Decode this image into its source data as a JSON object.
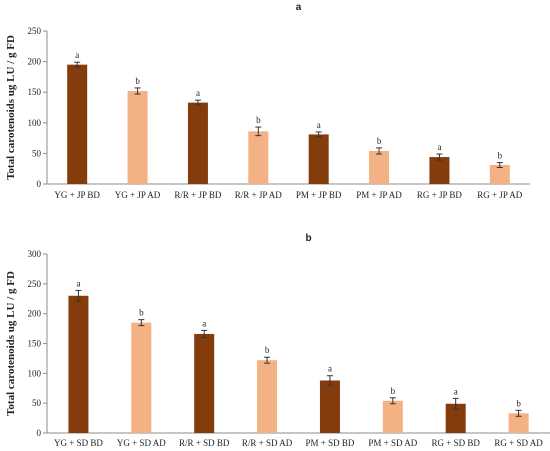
{
  "chart_data": [
    {
      "type": "bar",
      "title": "a",
      "ylabel": "Total carotenoids ug LU / g FD",
      "xlabel": "",
      "ylim": [
        0,
        250
      ],
      "yticks": [
        0,
        50,
        100,
        150,
        200,
        250
      ],
      "categories": [
        "YG + JP BD",
        "YG + JP AD",
        "R/R + JP BD",
        "R/R + JP AD",
        "PM + JP BD",
        "PM + JP AD",
        "RG + JP BD",
        "RG + JP AD"
      ],
      "values": [
        195,
        152,
        133,
        86,
        81,
        54,
        44,
        31
      ],
      "errors": [
        4,
        5,
        4,
        7,
        4,
        5,
        5,
        4
      ],
      "significance": [
        "a",
        "b",
        "a",
        "b",
        "a",
        "b",
        "a",
        "b"
      ],
      "bar_colors": [
        "#843c0c",
        "#f4b183",
        "#843c0c",
        "#f4b183",
        "#843c0c",
        "#f4b183",
        "#843c0c",
        "#f4b183"
      ],
      "grid": false,
      "legend": "none"
    },
    {
      "type": "bar",
      "title": "b",
      "ylabel": "Total carotenoids ug LU / g FD",
      "xlabel": "",
      "ylim": [
        0,
        300
      ],
      "yticks": [
        0,
        50,
        100,
        150,
        200,
        250,
        300
      ],
      "categories": [
        "YG + SD BD",
        "YG + SD AD",
        "R/R + SD BD",
        "R/R + SD AD",
        "PM + SD BD",
        "PM + SD AD",
        "RG + SD BD",
        "RG + SD AD"
      ],
      "values": [
        230,
        185,
        166,
        122,
        88,
        54,
        49,
        33
      ],
      "errors": [
        9,
        5,
        6,
        5,
        8,
        5,
        9,
        5
      ],
      "significance": [
        "a",
        "b",
        "a",
        "b",
        "a",
        "b",
        "a",
        "b"
      ],
      "bar_colors": [
        "#843c0c",
        "#f4b183",
        "#843c0c",
        "#f4b183",
        "#843c0c",
        "#f4b183",
        "#843c0c",
        "#f4b183"
      ],
      "grid": false,
      "legend": "none"
    }
  ]
}
